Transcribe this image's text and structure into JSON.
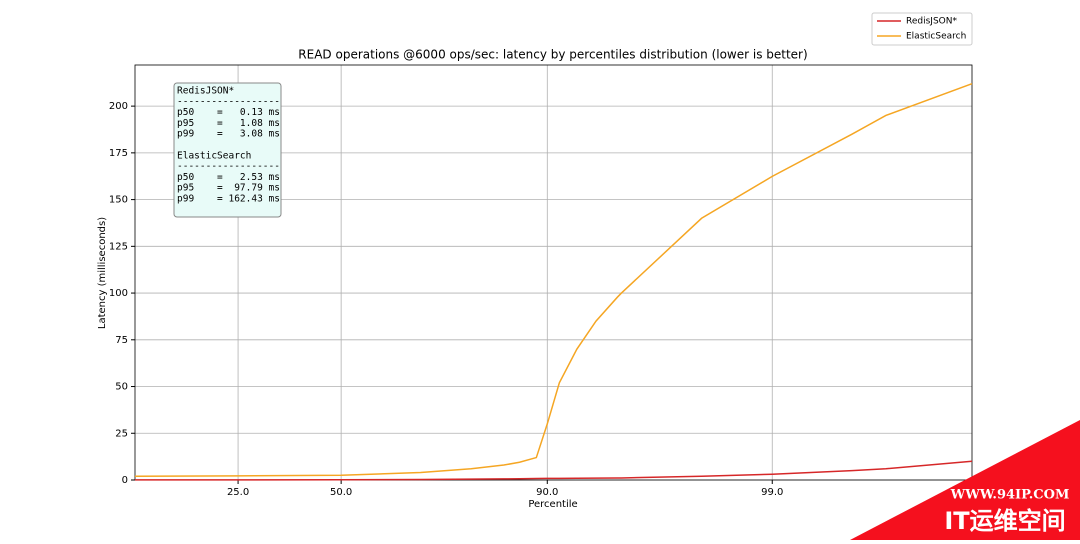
{
  "chart_data": {
    "type": "line",
    "title": "READ operations @6000 ops/sec: latency by percentiles distribution (lower is better)",
    "x_label": "Percentile",
    "y_label": "Latency (milliseconds)",
    "xscale": "logit",
    "xlim": [
      10,
      99.88
    ],
    "ylim": [
      0,
      222
    ],
    "xticks": [
      {
        "value": 25,
        "label": "25.0"
      },
      {
        "value": 50,
        "label": "50.0"
      },
      {
        "value": 90,
        "label": "90.0"
      },
      {
        "value": 99,
        "label": "99.0"
      }
    ],
    "yticks": [
      0,
      25,
      50,
      75,
      100,
      125,
      150,
      175,
      200
    ],
    "grid": true,
    "legend": "upper right",
    "x": [
      10,
      25,
      50,
      70,
      80,
      85,
      87,
      88.9,
      90,
      91.1,
      92.5,
      93.8,
      95,
      95.2,
      97.9,
      99,
      99.57,
      99.7,
      99.88
    ],
    "series": [
      {
        "name": "RedisJSON*",
        "color": "#d62728",
        "values": [
          0.05,
          0.08,
          0.13,
          0.3,
          0.45,
          0.6,
          0.7,
          0.8,
          0.85,
          0.9,
          0.95,
          1.0,
          1.08,
          1.1,
          2.0,
          3.08,
          5.0,
          6.0,
          10
        ]
      },
      {
        "name": "ElasticSearch",
        "color": "#f5a623",
        "values": [
          2,
          2.2,
          2.53,
          4,
          6,
          8,
          9.5,
          12,
          30,
          52,
          70,
          85,
          97.79,
          100,
          140,
          162.43,
          185,
          195,
          212
        ]
      }
    ],
    "annotation": [
      "RedisJSON*",
      "------------------",
      "p50    =   0.13 ms",
      "p95    =   1.08 ms",
      "p99    =   3.08 ms",
      "",
      "ElasticSearch",
      "------------------",
      "p50    =   2.53 ms",
      "p95    =  97.79 ms",
      "p99    = 162.43 ms"
    ]
  },
  "watermark": {
    "url": "WWW.94IP.COM",
    "name": "IT运维空间"
  }
}
